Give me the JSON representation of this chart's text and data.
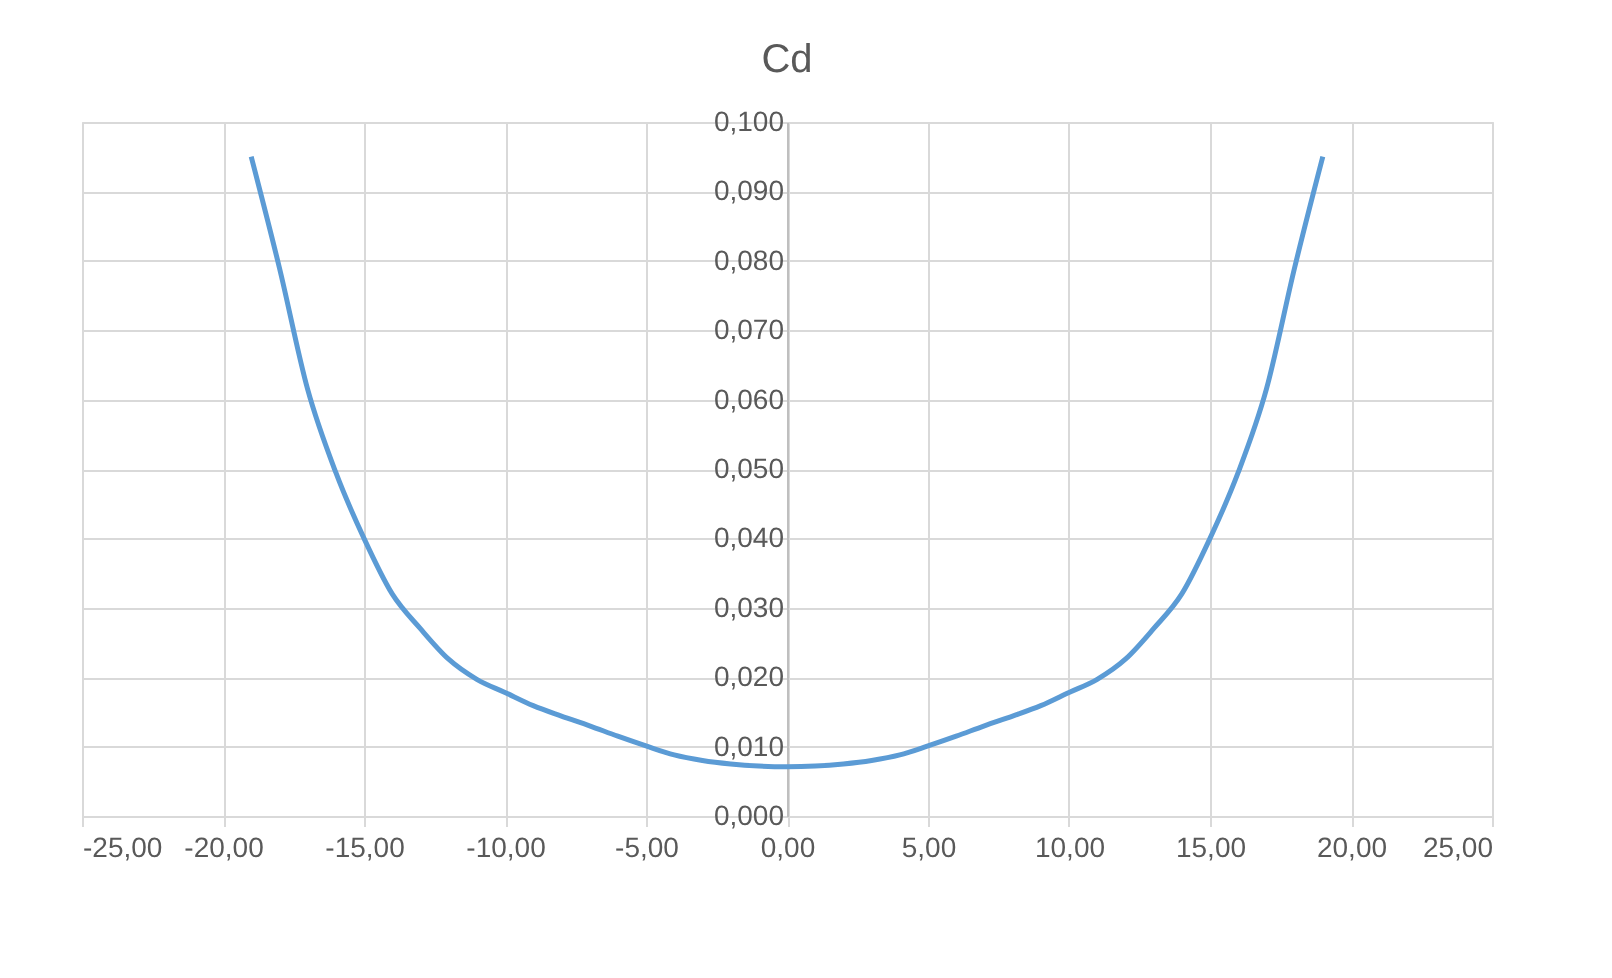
{
  "chart_data": {
    "type": "line",
    "title": "Cd",
    "x": [
      -19,
      -18,
      -17,
      -16,
      -15,
      -14,
      -13,
      -12,
      -11,
      -10,
      -9,
      -8,
      -7,
      -6,
      -5,
      -4,
      -3,
      -2,
      -1,
      0,
      1,
      2,
      3,
      4,
      5,
      6,
      7,
      8,
      9,
      10,
      11,
      12,
      13,
      14,
      15,
      16,
      17,
      18,
      19
    ],
    "series": [
      {
        "color": "#5b9bd5",
        "values": [
          0.095,
          0.079,
          0.0615,
          0.0495,
          0.04,
          0.032,
          0.027,
          0.0226,
          0.0197,
          0.0178,
          0.0159,
          0.0144,
          0.013,
          0.0115,
          0.0101,
          0.0088,
          0.008,
          0.0075,
          0.0072,
          0.0071,
          0.0072,
          0.0075,
          0.008,
          0.0088,
          0.0101,
          0.0115,
          0.013,
          0.0144,
          0.0159,
          0.0178,
          0.0197,
          0.0226,
          0.027,
          0.032,
          0.04,
          0.0495,
          0.0615,
          0.079,
          0.095
        ]
      }
    ],
    "xlim": [
      -25,
      25
    ],
    "xticks": [
      {
        "value": -25,
        "label": "-25,00"
      },
      {
        "value": -20,
        "label": "-20,00"
      },
      {
        "value": -15,
        "label": "-15,00"
      },
      {
        "value": -10,
        "label": "-10,00"
      },
      {
        "value": -5,
        "label": "-5,00"
      },
      {
        "value": 0,
        "label": "0,00"
      },
      {
        "value": 5,
        "label": "5,00"
      },
      {
        "value": 10,
        "label": "10,00"
      },
      {
        "value": 15,
        "label": "15,00"
      },
      {
        "value": 20,
        "label": "20,00"
      },
      {
        "value": 25,
        "label": "25,00"
      }
    ],
    "ylim": [
      0,
      0.1
    ],
    "yticks": [
      {
        "value": 0,
        "label": "0,000"
      },
      {
        "value": 0.01,
        "label": "0,010"
      },
      {
        "value": 0.02,
        "label": "0,020"
      },
      {
        "value": 0.03,
        "label": "0,030"
      },
      {
        "value": 0.04,
        "label": "0,040"
      },
      {
        "value": 0.05,
        "label": "0,050"
      },
      {
        "value": 0.06,
        "label": "0,060"
      },
      {
        "value": 0.07,
        "label": "0,070"
      },
      {
        "value": 0.08,
        "label": "0,080"
      },
      {
        "value": 0.09,
        "label": "0,090"
      },
      {
        "value": 0.1,
        "label": "0,100"
      }
    ],
    "grid": true,
    "marker": "none",
    "line_style": "solid"
  }
}
